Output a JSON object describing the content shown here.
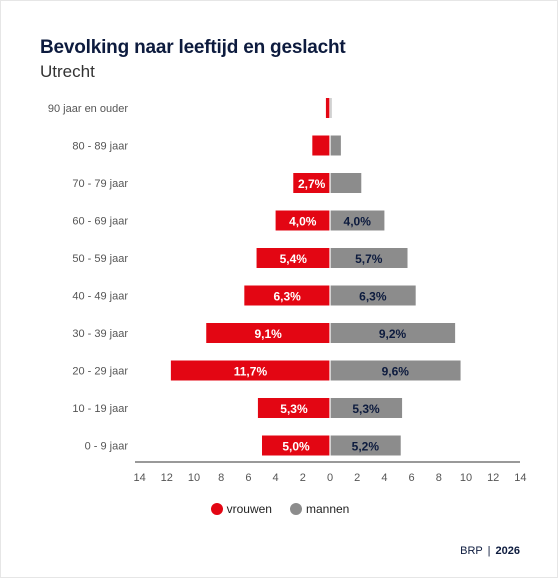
{
  "chart_data": {
    "type": "bar",
    "title": "Bevolking naar leeftijd en geslacht",
    "subtitle": "Utrecht",
    "categories": [
      "90 jaar en ouder",
      "80 - 89 jaar",
      "70 - 79 jaar",
      "60 - 69 jaar",
      "50 - 59 jaar",
      "40 - 49 jaar",
      "30 - 39 jaar",
      "20 - 29 jaar",
      "10 - 19 jaar",
      "0 - 9 jaar"
    ],
    "series": [
      {
        "name": "vrouwen",
        "color": "#e30613",
        "values": [
          0.3,
          1.3,
          2.7,
          4.0,
          5.4,
          6.3,
          9.1,
          11.7,
          5.3,
          5.0
        ],
        "labels": [
          "",
          "",
          "2,7%",
          "4,0%",
          "5,4%",
          "6,3%",
          "9,1%",
          "11,7%",
          "5,3%",
          "5,0%"
        ]
      },
      {
        "name": "mannen",
        "color": "#8c8c8c",
        "values": [
          0.1,
          0.8,
          2.3,
          4.0,
          5.7,
          6.3,
          9.2,
          9.6,
          5.3,
          5.2
        ],
        "labels": [
          "",
          "",
          "",
          "4,0%",
          "5,7%",
          "6,3%",
          "9,2%",
          "9,6%",
          "5,3%",
          "5,2%"
        ]
      }
    ],
    "xaxis": {
      "range": [
        -14,
        14
      ],
      "tick_labels": [
        "14",
        "12",
        "10",
        "8",
        "6",
        "4",
        "2",
        "0",
        "2",
        "4",
        "6",
        "8",
        "10",
        "12",
        "14"
      ]
    },
    "legend_position": "bottom-center"
  },
  "source": {
    "label": "BRP",
    "separator": "|",
    "year": "2026"
  }
}
